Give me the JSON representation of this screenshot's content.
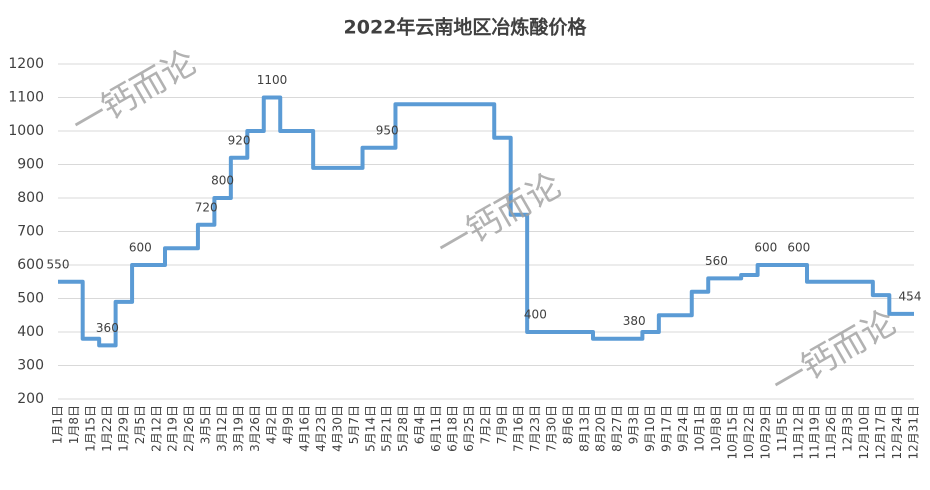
{
  "chart_data": {
    "type": "line",
    "title": "2022年云南地区冶炼酸价格",
    "categories": [
      "1月1日",
      "1月8日",
      "1月15日",
      "1月22日",
      "1月29日",
      "2月5日",
      "2月12日",
      "2月19日",
      "2月26日",
      "3月5日",
      "3月12日",
      "3月19日",
      "3月26日",
      "4月2日",
      "4月9日",
      "4月16日",
      "4月23日",
      "4月30日",
      "5月7日",
      "5月14日",
      "5月21日",
      "5月28日",
      "6月4日",
      "6月11日",
      "6月18日",
      "6月25日",
      "7月2日",
      "7月9日",
      "7月16日",
      "7月23日",
      "7月30日",
      "8月6日",
      "8月13日",
      "8月20日",
      "8月27日",
      "9月3日",
      "9月10日",
      "9月17日",
      "9月24日",
      "10月1日",
      "10月8日",
      "10月15日",
      "10月22日",
      "10月29日",
      "11月5日",
      "11月12日",
      "11月19日",
      "11月26日",
      "12月3日",
      "12月10日",
      "12月17日",
      "12月24日",
      "12月31日"
    ],
    "series": [
      {
        "name": "价格",
        "color": "#5b9bd5",
        "values": [
          550,
          550,
          380,
          360,
          490,
          600,
          600,
          650,
          650,
          720,
          800,
          920,
          1000,
          1100,
          1000,
          1000,
          890,
          890,
          890,
          950,
          950,
          1080,
          1080,
          1080,
          1080,
          1080,
          1080,
          980,
          750,
          400,
          400,
          400,
          400,
          380,
          380,
          380,
          400,
          450,
          450,
          520,
          560,
          560,
          570,
          600,
          600,
          600,
          550,
          550,
          550,
          550,
          510,
          454,
          454
        ]
      }
    ],
    "labeled": [
      0,
      3,
      5,
      9,
      10,
      11,
      13,
      20,
      29,
      35,
      40,
      43,
      45,
      52
    ],
    "ylim": [
      200,
      1200
    ],
    "yticks": [
      200,
      300,
      400,
      500,
      600,
      700,
      800,
      900,
      1000,
      1100,
      1200
    ],
    "grid": true,
    "watermark": "一钙而论"
  }
}
